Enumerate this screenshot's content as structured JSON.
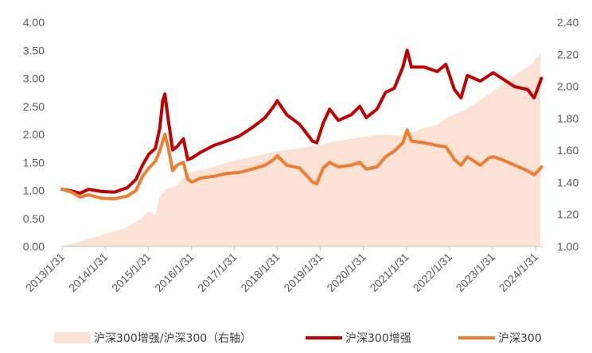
{
  "chart_data": {
    "type": "line",
    "x_ticks": [
      "2013/1/31",
      "2014/1/31",
      "2015/1/31",
      "2016/1/31",
      "2017/1/31",
      "2018/1/31",
      "2019/1/31",
      "2020/1/31",
      "2021/1/31",
      "2022/1/31",
      "2023/1/31",
      "2024/1/31"
    ],
    "y_left": {
      "min": 0,
      "max": 4.0,
      "ticks": [
        "0.00",
        "0.50",
        "1.00",
        "1.50",
        "2.00",
        "2.50",
        "3.00",
        "3.50",
        "4.00"
      ]
    },
    "y_right": {
      "min": 1.0,
      "max": 2.4,
      "ticks": [
        "1.00",
        "1.20",
        "1.40",
        "1.60",
        "1.80",
        "2.00",
        "2.20",
        "2.40"
      ]
    },
    "x_range": [
      2013.08,
      2024.25
    ],
    "grid": false,
    "legend_position": "bottom",
    "series": [
      {
        "name": "沪深300增强/沪深300（右轴）",
        "kind": "area",
        "axis": "right",
        "color": "#fbe2d5",
        "points": [
          [
            2013.08,
            1.0
          ],
          [
            2013.5,
            1.03
          ],
          [
            2014.0,
            1.07
          ],
          [
            2014.5,
            1.11
          ],
          [
            2014.9,
            1.17
          ],
          [
            2015.1,
            1.22
          ],
          [
            2015.25,
            1.2
          ],
          [
            2015.35,
            1.31
          ],
          [
            2015.5,
            1.36
          ],
          [
            2015.75,
            1.38
          ],
          [
            2016.0,
            1.46
          ],
          [
            2016.5,
            1.49
          ],
          [
            2017.0,
            1.53
          ],
          [
            2017.5,
            1.56
          ],
          [
            2018.0,
            1.59
          ],
          [
            2018.5,
            1.61
          ],
          [
            2019.0,
            1.63
          ],
          [
            2019.5,
            1.66
          ],
          [
            2020.0,
            1.68
          ],
          [
            2020.5,
            1.7
          ],
          [
            2021.0,
            1.69
          ],
          [
            2021.5,
            1.74
          ],
          [
            2021.8,
            1.76
          ],
          [
            2022.0,
            1.8
          ],
          [
            2022.5,
            1.86
          ],
          [
            2023.0,
            1.95
          ],
          [
            2023.5,
            2.05
          ],
          [
            2024.0,
            2.14
          ],
          [
            2024.2,
            2.21
          ]
        ]
      },
      {
        "name": "沪深300增强",
        "kind": "line",
        "axis": "left",
        "color": "#c00000",
        "points": [
          [
            2013.08,
            1.02
          ],
          [
            2013.3,
            0.99
          ],
          [
            2013.5,
            0.95
          ],
          [
            2013.7,
            1.02
          ],
          [
            2014.0,
            0.98
          ],
          [
            2014.3,
            0.97
          ],
          [
            2014.6,
            1.05
          ],
          [
            2014.8,
            1.2
          ],
          [
            2014.95,
            1.45
          ],
          [
            2015.1,
            1.65
          ],
          [
            2015.25,
            1.75
          ],
          [
            2015.35,
            2.1
          ],
          [
            2015.42,
            2.6
          ],
          [
            2015.47,
            2.72
          ],
          [
            2015.55,
            2.25
          ],
          [
            2015.65,
            1.72
          ],
          [
            2015.75,
            1.78
          ],
          [
            2015.9,
            1.92
          ],
          [
            2016.0,
            1.55
          ],
          [
            2016.1,
            1.58
          ],
          [
            2016.3,
            1.68
          ],
          [
            2016.6,
            1.8
          ],
          [
            2016.9,
            1.88
          ],
          [
            2017.2,
            1.97
          ],
          [
            2017.5,
            2.12
          ],
          [
            2017.8,
            2.3
          ],
          [
            2018.0,
            2.5
          ],
          [
            2018.08,
            2.6
          ],
          [
            2018.3,
            2.35
          ],
          [
            2018.6,
            2.18
          ],
          [
            2018.9,
            1.88
          ],
          [
            2019.0,
            1.85
          ],
          [
            2019.15,
            2.2
          ],
          [
            2019.3,
            2.45
          ],
          [
            2019.5,
            2.25
          ],
          [
            2019.8,
            2.35
          ],
          [
            2020.0,
            2.5
          ],
          [
            2020.15,
            2.3
          ],
          [
            2020.4,
            2.45
          ],
          [
            2020.6,
            2.75
          ],
          [
            2020.8,
            2.82
          ],
          [
            2021.0,
            3.2
          ],
          [
            2021.1,
            3.5
          ],
          [
            2021.2,
            3.2
          ],
          [
            2021.5,
            3.2
          ],
          [
            2021.8,
            3.12
          ],
          [
            2022.0,
            3.25
          ],
          [
            2022.2,
            2.8
          ],
          [
            2022.35,
            2.65
          ],
          [
            2022.5,
            3.05
          ],
          [
            2022.8,
            2.95
          ],
          [
            2023.0,
            3.05
          ],
          [
            2023.1,
            3.1
          ],
          [
            2023.3,
            3.0
          ],
          [
            2023.6,
            2.85
          ],
          [
            2023.9,
            2.8
          ],
          [
            2024.05,
            2.65
          ],
          [
            2024.15,
            2.85
          ],
          [
            2024.22,
            3.0
          ]
        ]
      },
      {
        "name": "沪深300",
        "kind": "line",
        "axis": "left",
        "color": "#ed7d31",
        "points": [
          [
            2013.08,
            1.02
          ],
          [
            2013.3,
            0.97
          ],
          [
            2013.5,
            0.88
          ],
          [
            2013.7,
            0.92
          ],
          [
            2014.0,
            0.86
          ],
          [
            2014.3,
            0.85
          ],
          [
            2014.6,
            0.9
          ],
          [
            2014.8,
            1.0
          ],
          [
            2014.95,
            1.25
          ],
          [
            2015.1,
            1.4
          ],
          [
            2015.25,
            1.52
          ],
          [
            2015.35,
            1.7
          ],
          [
            2015.47,
            2.0
          ],
          [
            2015.55,
            1.75
          ],
          [
            2015.65,
            1.35
          ],
          [
            2015.75,
            1.45
          ],
          [
            2015.9,
            1.5
          ],
          [
            2016.0,
            1.2
          ],
          [
            2016.1,
            1.15
          ],
          [
            2016.3,
            1.22
          ],
          [
            2016.6,
            1.25
          ],
          [
            2016.9,
            1.3
          ],
          [
            2017.2,
            1.32
          ],
          [
            2017.5,
            1.38
          ],
          [
            2017.8,
            1.45
          ],
          [
            2018.0,
            1.55
          ],
          [
            2018.08,
            1.62
          ],
          [
            2018.3,
            1.45
          ],
          [
            2018.6,
            1.4
          ],
          [
            2018.9,
            1.15
          ],
          [
            2019.0,
            1.12
          ],
          [
            2019.15,
            1.4
          ],
          [
            2019.3,
            1.5
          ],
          [
            2019.5,
            1.42
          ],
          [
            2019.8,
            1.45
          ],
          [
            2020.0,
            1.5
          ],
          [
            2020.15,
            1.38
          ],
          [
            2020.4,
            1.42
          ],
          [
            2020.6,
            1.6
          ],
          [
            2020.8,
            1.7
          ],
          [
            2021.0,
            1.85
          ],
          [
            2021.1,
            2.08
          ],
          [
            2021.2,
            1.88
          ],
          [
            2021.5,
            1.85
          ],
          [
            2021.8,
            1.8
          ],
          [
            2022.0,
            1.78
          ],
          [
            2022.2,
            1.55
          ],
          [
            2022.35,
            1.45
          ],
          [
            2022.5,
            1.6
          ],
          [
            2022.8,
            1.45
          ],
          [
            2023.0,
            1.58
          ],
          [
            2023.1,
            1.6
          ],
          [
            2023.3,
            1.55
          ],
          [
            2023.6,
            1.45
          ],
          [
            2023.9,
            1.35
          ],
          [
            2024.05,
            1.28
          ],
          [
            2024.15,
            1.35
          ],
          [
            2024.22,
            1.42
          ]
        ]
      }
    ],
    "legend": [
      {
        "label": "沪深300增强/沪深300（右轴）"
      },
      {
        "label": "沪深300增强"
      },
      {
        "label": "沪深300"
      }
    ]
  }
}
